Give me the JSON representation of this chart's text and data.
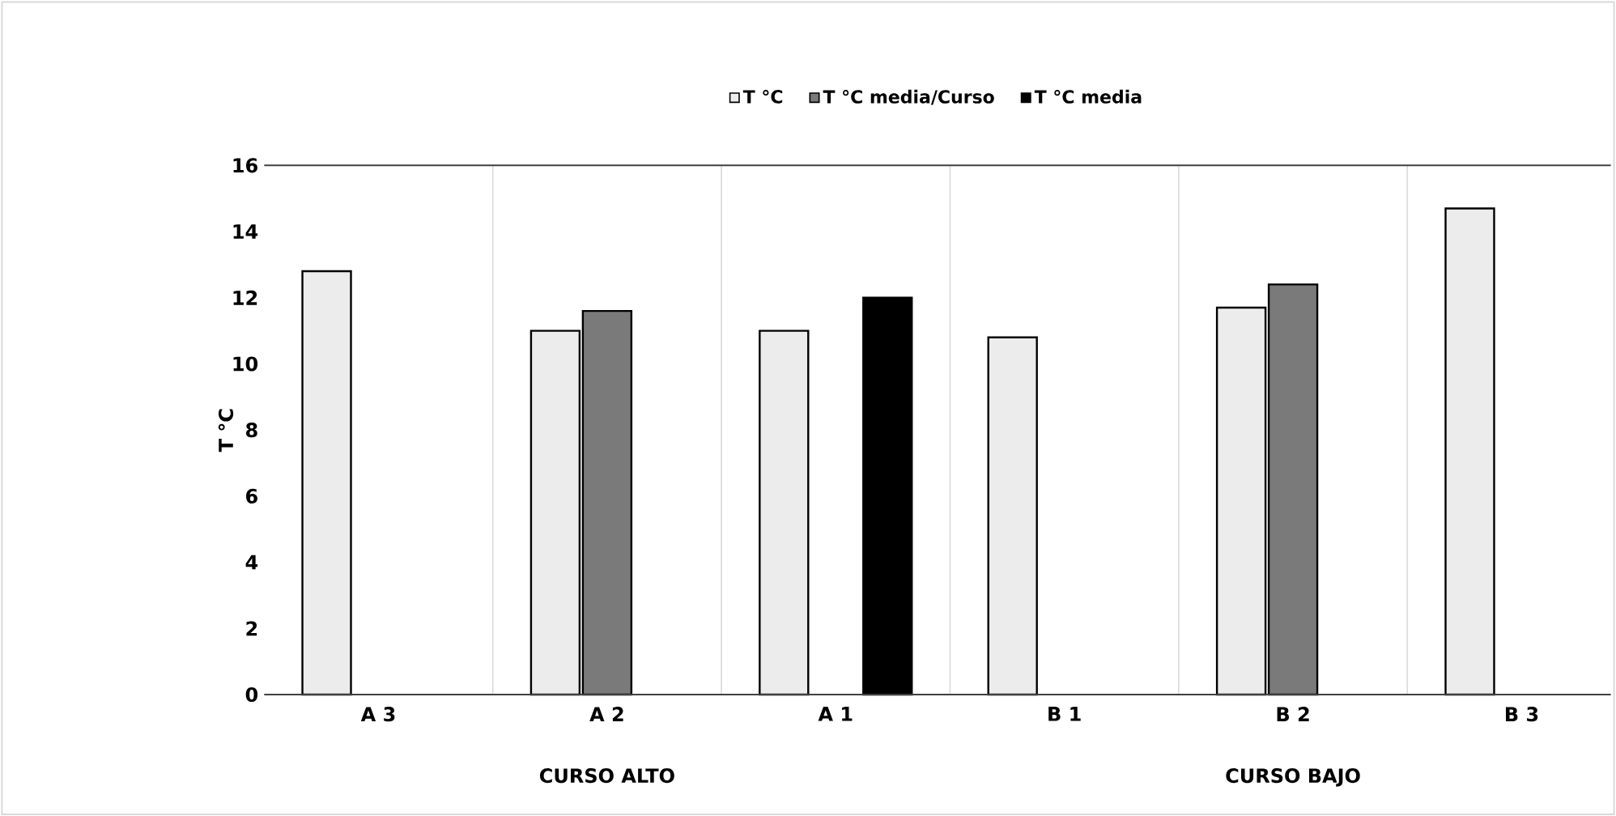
{
  "chart_data": {
    "type": "bar",
    "ylabel": "T °C",
    "categories": [
      "A 3",
      "A 2",
      "A 1",
      "B 1",
      "B 2",
      "B 3"
    ],
    "series": [
      {
        "name": "T °C",
        "color": "#ececec",
        "values": [
          12.8,
          11.0,
          11.0,
          10.8,
          11.7,
          14.7
        ]
      },
      {
        "name": "T °C media/Curso",
        "color": "#7a7a7a",
        "values": [
          null,
          11.6,
          null,
          null,
          12.4,
          null
        ]
      },
      {
        "name": "T °C media",
        "color": "#000000",
        "values": [
          null,
          null,
          12.0,
          null,
          null,
          null
        ]
      }
    ],
    "ylim": [
      0,
      16
    ],
    "yticks": [
      0,
      2,
      4,
      6,
      8,
      10,
      12,
      14,
      16
    ],
    "grid": "x",
    "legend": "top",
    "annotations": [
      "CURSO ALTO",
      "CURSO BAJO"
    ]
  }
}
